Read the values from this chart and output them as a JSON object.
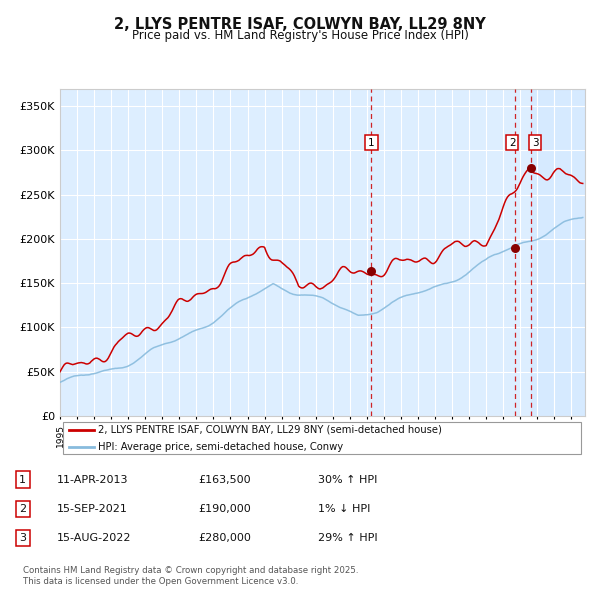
{
  "title": "2, LLYS PENTRE ISAF, COLWYN BAY, LL29 8NY",
  "subtitle": "Price paid vs. HM Land Registry's House Price Index (HPI)",
  "ylim": [
    0,
    370000
  ],
  "yticks": [
    0,
    50000,
    100000,
    150000,
    200000,
    250000,
    300000,
    350000
  ],
  "ytick_labels": [
    "£0",
    "£50K",
    "£100K",
    "£150K",
    "£200K",
    "£250K",
    "£300K",
    "£350K"
  ],
  "xlim_start": 1995.0,
  "xlim_end": 2025.8,
  "background_color": "#ffffff",
  "plot_bg_color": "#ddeeff",
  "grid_color": "#ffffff",
  "red_line_color": "#cc0000",
  "blue_line_color": "#88bbdd",
  "dashed_line_color": "#cc0000",
  "marker_color": "#880000",
  "sale1_x": 2013.274,
  "sale1_y": 163500,
  "sale1_label": "1",
  "sale2_x": 2021.708,
  "sale2_y": 190000,
  "sale2_label": "2",
  "sale3_x": 2022.621,
  "sale3_y": 280000,
  "sale3_label": "3",
  "legend_property": "2, LLYS PENTRE ISAF, COLWYN BAY, LL29 8NY (semi-detached house)",
  "legend_hpi": "HPI: Average price, semi-detached house, Conwy",
  "table_rows": [
    {
      "num": "1",
      "date": "11-APR-2013",
      "price": "£163,500",
      "hpi": "30% ↑ HPI"
    },
    {
      "num": "2",
      "date": "15-SEP-2021",
      "price": "£190,000",
      "hpi": "1% ↓ HPI"
    },
    {
      "num": "3",
      "date": "15-AUG-2022",
      "price": "£280,000",
      "hpi": "29% ↑ HPI"
    }
  ],
  "footnote": "Contains HM Land Registry data © Crown copyright and database right 2025.\nThis data is licensed under the Open Government Licence v3.0."
}
